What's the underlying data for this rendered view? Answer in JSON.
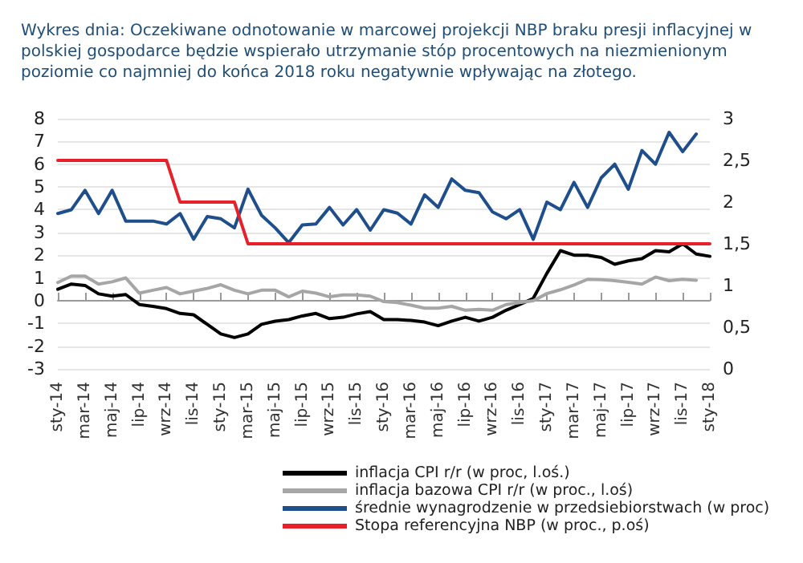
{
  "chart_data": {
    "type": "line",
    "title": "Wykres dnia: Oczekiwane odnotowanie w marcowej projekcji NBP braku presji inflacyjnej w polskiej gospodarce będzie wspierało utrzymanie stóp procentowych na niezmienionym poziomie co najmniej do końca 2018 roku negatywnie wpływając na złotego.",
    "categories": [
      "sty-14",
      null,
      "mar-14",
      null,
      "maj-14",
      null,
      "lip-14",
      null,
      "wrz-14",
      null,
      "lis-14",
      null,
      "sty-15",
      null,
      "mar-15",
      null,
      "maj-15",
      null,
      "lip-15",
      null,
      "wrz-15",
      null,
      "lis-15",
      null,
      "sty-16",
      null,
      "mar-16",
      null,
      "maj-16",
      null,
      "lip-16",
      null,
      "wrz-16",
      null,
      "lis-16",
      null,
      "sty-17",
      null,
      "mar-17",
      null,
      "maj-17",
      null,
      "lip-17",
      null,
      "wrz-17",
      null,
      "lis-17",
      null,
      "sty-18"
    ],
    "series": [
      {
        "name": "inflacja CPI r/r (w proc, l.oś.)",
        "color": "#000000",
        "values": [
          0.5,
          0.73,
          0.67,
          0.3,
          0.2,
          0.27,
          -0.17,
          -0.25,
          -0.35,
          -0.56,
          -0.62,
          -1.04,
          -1.46,
          -1.62,
          -1.46,
          -1.04,
          -0.9,
          -0.83,
          -0.67,
          -0.56,
          -0.79,
          -0.73,
          -0.58,
          -0.48,
          -0.83,
          -0.83,
          -0.87,
          -0.94,
          -1.1,
          -0.9,
          -0.73,
          -0.9,
          -0.73,
          -0.42,
          -0.17,
          0.1,
          1.2,
          2.2,
          2.0,
          2.0,
          1.9,
          1.6,
          1.75,
          1.85,
          2.2,
          2.15,
          2.5,
          2.05,
          1.95
        ]
      },
      {
        "name": "inflacja bazowa CPI r/r (w proc., l.oś)",
        "color": "#a6a6a6",
        "values": [
          0.8,
          1.08,
          1.08,
          0.73,
          0.83,
          1.0,
          0.33,
          0.46,
          0.58,
          0.3,
          0.42,
          0.54,
          0.7,
          0.46,
          0.3,
          0.46,
          0.46,
          0.17,
          0.42,
          0.33,
          0.17,
          0.25,
          0.25,
          0.2,
          -0.04,
          -0.08,
          -0.2,
          -0.33,
          -0.33,
          -0.25,
          -0.42,
          -0.38,
          -0.42,
          -0.17,
          -0.08,
          0.0,
          0.31,
          0.48,
          0.69,
          0.94,
          0.92,
          0.88,
          0.81,
          0.73,
          1.04,
          0.88,
          0.94,
          0.9,
          null
        ]
      },
      {
        "name": "średnie wynagrodzenie w przedsiebiorstwach (w proc)",
        "color": "#1f4e8c",
        "values": [
          3.83,
          4.0,
          4.85,
          3.83,
          4.85,
          3.5,
          3.5,
          3.5,
          3.37,
          3.83,
          2.7,
          3.7,
          3.6,
          3.2,
          4.9,
          3.75,
          3.2,
          2.55,
          3.33,
          3.37,
          4.1,
          3.33,
          4.0,
          3.1,
          4.0,
          3.85,
          3.37,
          4.65,
          4.1,
          5.35,
          4.85,
          4.75,
          3.9,
          3.6,
          4.0,
          2.7,
          4.33,
          4.0,
          5.2,
          4.1,
          5.4,
          6.0,
          4.9,
          6.6,
          6.0,
          7.4,
          6.55,
          7.33,
          null
        ]
      },
      {
        "name": "Stopa referencyjna NBP (w proc., p.oś)",
        "color": "#e8202a",
        "axis": "y2",
        "values": [
          2.5,
          2.5,
          2.5,
          2.5,
          2.5,
          2.5,
          2.5,
          2.5,
          2.5,
          2.0,
          2.0,
          2.0,
          2.0,
          2.0,
          1.5,
          1.5,
          1.5,
          1.5,
          1.5,
          1.5,
          1.5,
          1.5,
          1.5,
          1.5,
          1.5,
          1.5,
          1.5,
          1.5,
          1.5,
          1.5,
          1.5,
          1.5,
          1.5,
          1.5,
          1.5,
          1.5,
          1.5,
          1.5,
          1.5,
          1.5,
          1.5,
          1.5,
          1.5,
          1.5,
          1.5,
          1.5,
          1.5,
          1.5,
          1.5
        ]
      }
    ],
    "ylim": [
      -3,
      8
    ],
    "yticks": [
      -3,
      -2,
      -1,
      0,
      1,
      2,
      3,
      4,
      5,
      6,
      7,
      8
    ],
    "y2lim": [
      0,
      3
    ],
    "y2ticks": [
      0,
      {
        "value": 0.5,
        "label": "0,5"
      },
      1,
      {
        "value": 1.5,
        "label": "1,5"
      },
      2,
      {
        "value": 2.5,
        "label": "2,5"
      },
      3
    ],
    "grid": "y",
    "legend": "bottom",
    "marker": "none",
    "line_style": "solid"
  }
}
